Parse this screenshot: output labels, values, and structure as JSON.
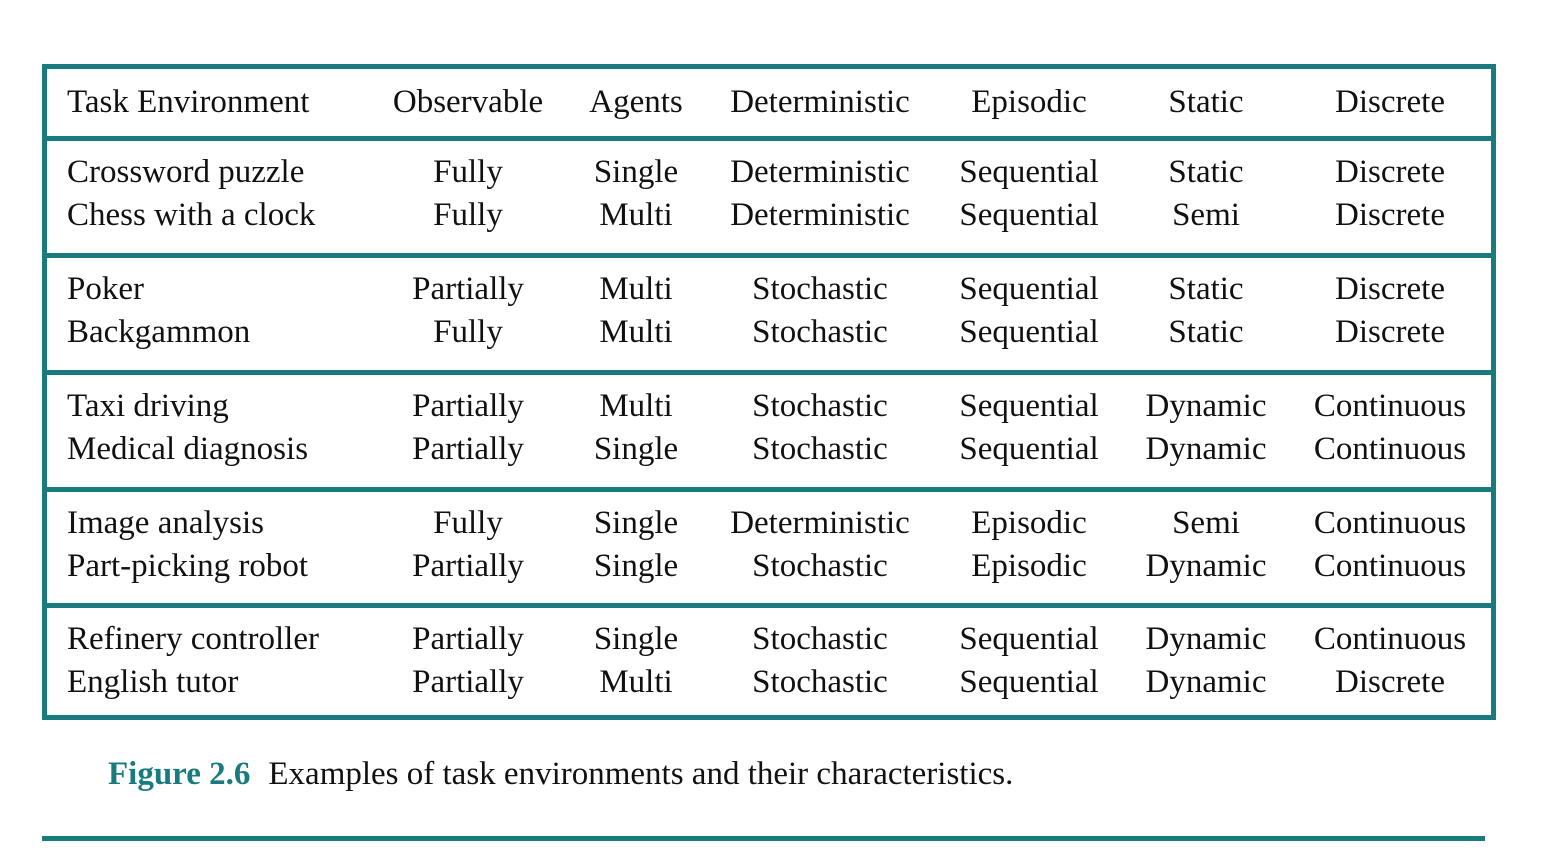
{
  "table": {
    "headers": [
      "Task Environment",
      "Observable",
      "Agents",
      "Deterministic",
      "Episodic",
      "Static",
      "Discrete"
    ],
    "groups": [
      [
        [
          "Crossword puzzle",
          "Fully",
          "Single",
          "Deterministic",
          "Sequential",
          "Static",
          "Discrete"
        ],
        [
          "Chess with a clock",
          "Fully",
          "Multi",
          "Deterministic",
          "Sequential",
          "Semi",
          "Discrete"
        ]
      ],
      [
        [
          "Poker",
          "Partially",
          "Multi",
          "Stochastic",
          "Sequential",
          "Static",
          "Discrete"
        ],
        [
          "Backgammon",
          "Fully",
          "Multi",
          "Stochastic",
          "Sequential",
          "Static",
          "Discrete"
        ]
      ],
      [
        [
          "Taxi driving",
          "Partially",
          "Multi",
          "Stochastic",
          "Sequential",
          "Dynamic",
          "Continuous"
        ],
        [
          "Medical diagnosis",
          "Partially",
          "Single",
          "Stochastic",
          "Sequential",
          "Dynamic",
          "Continuous"
        ]
      ],
      [
        [
          "Image analysis",
          "Fully",
          "Single",
          "Deterministic",
          "Episodic",
          "Semi",
          "Continuous"
        ],
        [
          "Part-picking robot",
          "Partially",
          "Single",
          "Stochastic",
          "Episodic",
          "Dynamic",
          "Continuous"
        ]
      ],
      [
        [
          "Refinery controller",
          "Partially",
          "Single",
          "Stochastic",
          "Sequential",
          "Dynamic",
          "Continuous"
        ],
        [
          "English tutor",
          "Partially",
          "Multi",
          "Stochastic",
          "Sequential",
          "Dynamic",
          "Discrete"
        ]
      ]
    ]
  },
  "caption": {
    "label": "Figure 2.6",
    "text": "Examples of task environments and their characteristics."
  },
  "colors": {
    "accent": "#1a7b7f",
    "text": "#111111"
  }
}
